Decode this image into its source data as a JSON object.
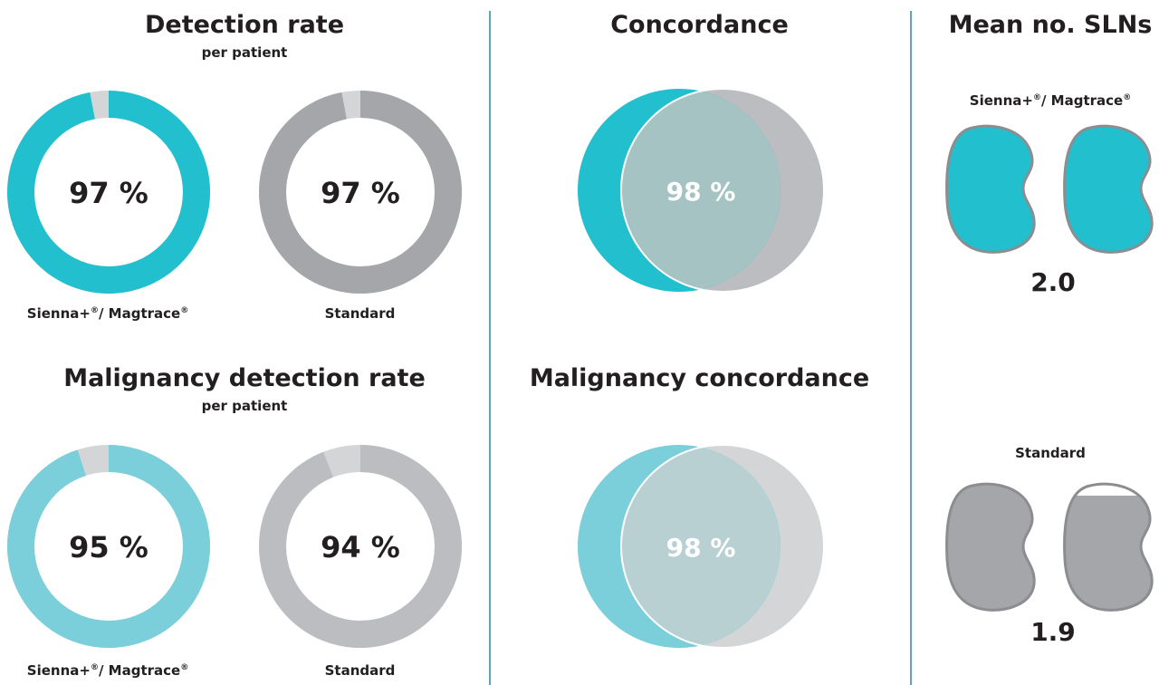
{
  "panels": {
    "detection": {
      "title": "Detection rate",
      "subtitle": "per patient",
      "left_label": "Sienna+",
      "right_label": "Standard"
    },
    "malignancy_detection": {
      "title": "Malignancy detection rate",
      "subtitle": "per patient",
      "left_label": "Sienna+",
      "right_label": "Standard"
    },
    "concordance": {
      "title": "Concordance"
    },
    "malignancy_concordance": {
      "title": "Malignancy concordance"
    },
    "mean_slns": {
      "title": "Mean no. SLNs",
      "group1_label": "Sienna+",
      "group2_label": "Standard"
    }
  },
  "label_parts": {
    "reg": "®",
    "slash": "/ Magtrace"
  },
  "colors": {
    "teal": "#22bfcf",
    "teal_light": "#7acfda",
    "gray_dark": "#a5a6a9",
    "gray_light": "#bcbdc0",
    "gray_pale": "#d4d5d7",
    "overlap_teal": "#a6c3c4",
    "overlap_light": "#b8d0d2",
    "divider": "#5aa9b6"
  },
  "chart_data": [
    {
      "type": "pie",
      "title": "Detection rate",
      "subtitle": "per patient",
      "series": [
        {
          "name": "Sienna+® / Magtrace®",
          "values": [
            97
          ],
          "label": "97 %"
        },
        {
          "name": "Standard",
          "values": [
            97
          ],
          "label": "97 %"
        }
      ]
    },
    {
      "type": "pie",
      "title": "Malignancy detection rate",
      "subtitle": "per patient",
      "series": [
        {
          "name": "Sienna+® / Magtrace®",
          "values": [
            95
          ],
          "label": "95 %"
        },
        {
          "name": "Standard",
          "values": [
            94
          ],
          "label": "94 %"
        }
      ]
    },
    {
      "type": "other",
      "title": "Concordance",
      "values": [
        98
      ],
      "label": "98 %"
    },
    {
      "type": "other",
      "title": "Malignancy concordance",
      "values": [
        98
      ],
      "label": "98 %"
    },
    {
      "type": "other",
      "title": "Mean no. SLNs",
      "series": [
        {
          "name": "Sienna+® / Magtrace®",
          "values": [
            2.0
          ],
          "label": "2.0"
        },
        {
          "name": "Standard",
          "values": [
            1.9
          ],
          "label": "1.9"
        }
      ]
    }
  ]
}
